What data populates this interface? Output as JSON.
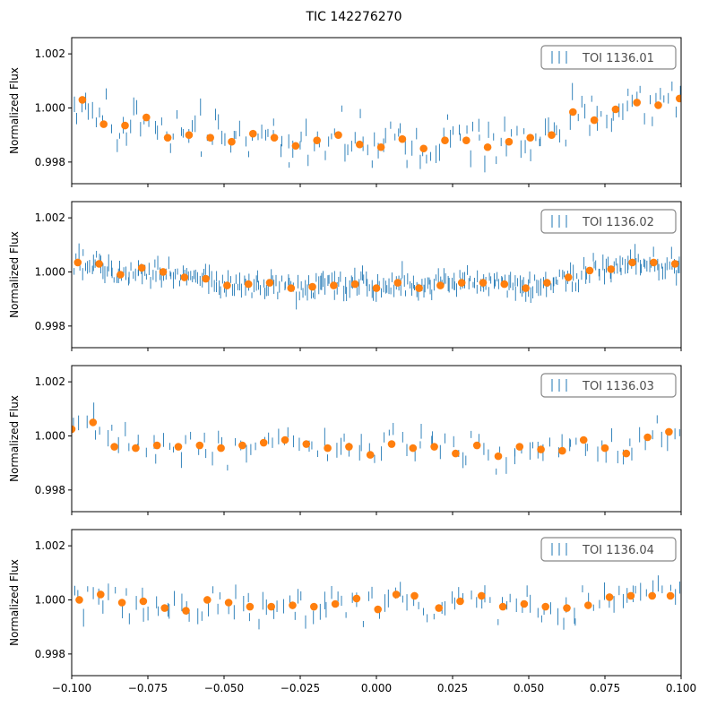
{
  "title": "TIC 142276270",
  "chart_data": [
    {
      "type": "scatter",
      "ylabel": "Normalized Flux",
      "xlim": [
        -0.1,
        0.1
      ],
      "ylim": [
        0.9972,
        1.0026
      ],
      "yticks": [
        0.998,
        1.0,
        1.002
      ],
      "ytick_labels": [
        "0.998",
        "1.000",
        "1.002"
      ],
      "show_x_tick_labels": false,
      "legend": {
        "label": "TOI 1136.01",
        "loc": "top-right"
      },
      "raw_color": "#1f77b4",
      "binned_color": "#ff7f0e",
      "raw_noise": 0.0007,
      "raw_count": 160,
      "binned": {
        "x": [
          -0.0965,
          -0.0895,
          -0.0825,
          -0.0755,
          -0.0685,
          -0.0615,
          -0.0545,
          -0.0475,
          -0.0405,
          -0.0335,
          -0.0265,
          -0.0195,
          -0.0125,
          -0.0055,
          0.0015,
          0.0085,
          0.0155,
          0.0225,
          0.0295,
          0.0365,
          0.0435,
          0.0505,
          0.0575,
          0.0645,
          0.0715,
          0.0785,
          0.0855,
          0.0925,
          0.0995
        ],
        "y": [
          1.0003,
          0.9994,
          0.99935,
          0.99965,
          0.9989,
          0.999,
          0.9989,
          0.99875,
          0.99905,
          0.9989,
          0.9986,
          0.9988,
          0.999,
          0.99865,
          0.99855,
          0.99885,
          0.9985,
          0.9988,
          0.9988,
          0.99855,
          0.99875,
          0.9989,
          0.999,
          0.99985,
          0.99955,
          0.99995,
          1.0002,
          1.0001,
          1.00035
        ]
      }
    },
    {
      "type": "scatter",
      "ylabel": "Normalized Flux",
      "xlim": [
        -0.1,
        0.1
      ],
      "ylim": [
        0.9972,
        1.0026
      ],
      "yticks": [
        0.998,
        1.0,
        1.002
      ],
      "ytick_labels": [
        "0.998",
        "1.000",
        "1.002"
      ],
      "show_x_tick_labels": false,
      "legend": {
        "label": "TOI 1136.02",
        "loc": "top-right"
      },
      "raw_color": "#1f77b4",
      "binned_color": "#ff7f0e",
      "raw_noise": 0.00035,
      "raw_count": 320,
      "binned": {
        "x": [
          -0.098,
          -0.091,
          -0.084,
          -0.077,
          -0.07,
          -0.063,
          -0.056,
          -0.049,
          -0.042,
          -0.035,
          -0.028,
          -0.021,
          -0.014,
          -0.007,
          0.0,
          0.007,
          0.014,
          0.021,
          0.028,
          0.035,
          0.042,
          0.049,
          0.056,
          0.063,
          0.07,
          0.077,
          0.084,
          0.091,
          0.098
        ],
        "y": [
          1.00035,
          1.0003,
          0.9999,
          1.00015,
          1.0,
          0.9998,
          0.99975,
          0.9995,
          0.99955,
          0.9996,
          0.9994,
          0.99945,
          0.9995,
          0.99955,
          0.9994,
          0.9996,
          0.9994,
          0.9995,
          0.9996,
          0.9996,
          0.99955,
          0.9994,
          0.9996,
          0.9998,
          1.00005,
          1.0001,
          1.00035,
          1.00035,
          1.0003
        ]
      }
    },
    {
      "type": "scatter",
      "ylabel": "Normalized Flux",
      "xlim": [
        -0.1,
        0.1
      ],
      "ylim": [
        0.9972,
        1.0026
      ],
      "yticks": [
        0.998,
        1.0,
        1.002
      ],
      "ytick_labels": [
        "0.998",
        "1.000",
        "1.002"
      ],
      "show_x_tick_labels": false,
      "legend": {
        "label": "TOI 1136.03",
        "loc": "top-right"
      },
      "raw_color": "#1f77b4",
      "binned_color": "#ff7f0e",
      "raw_noise": 0.0005,
      "raw_count": 110,
      "binned": {
        "x": [
          -0.1,
          -0.093,
          -0.086,
          -0.079,
          -0.072,
          -0.065,
          -0.058,
          -0.051,
          -0.044,
          -0.037,
          -0.03,
          -0.023,
          -0.016,
          -0.009,
          -0.002,
          0.005,
          0.012,
          0.019,
          0.026,
          0.033,
          0.04,
          0.047,
          0.054,
          0.061,
          0.068,
          0.075,
          0.082,
          0.089,
          0.096
        ],
        "y": [
          1.00025,
          1.0005,
          0.9996,
          0.99955,
          0.99965,
          0.9996,
          0.99965,
          0.99955,
          0.99965,
          0.99975,
          0.99985,
          0.9997,
          0.99955,
          0.9996,
          0.9993,
          0.9997,
          0.99955,
          0.9996,
          0.99935,
          0.99965,
          0.99925,
          0.9996,
          0.9995,
          0.99945,
          0.99985,
          0.99955,
          0.99935,
          0.99995,
          1.00015
        ]
      }
    },
    {
      "type": "scatter",
      "ylabel": "Normalized Flux",
      "xlim": [
        -0.1,
        0.1
      ],
      "ylim": [
        0.9972,
        1.0026
      ],
      "yticks": [
        0.998,
        1.0,
        1.002
      ],
      "ytick_labels": [
        "0.998",
        "1.000",
        "1.002"
      ],
      "xticks": [
        -0.1,
        -0.075,
        -0.05,
        -0.025,
        0.0,
        0.025,
        0.05,
        0.075,
        0.1
      ],
      "xtick_labels": [
        "−0.100",
        "−0.075",
        "−0.050",
        "−0.025",
        "0.000",
        "0.025",
        "0.050",
        "0.075",
        "0.100"
      ],
      "show_x_tick_labels": true,
      "legend": {
        "label": "TOI 1136.04",
        "loc": "top-right"
      },
      "raw_color": "#1f77b4",
      "binned_color": "#ff7f0e",
      "raw_noise": 0.0005,
      "raw_count": 120,
      "binned": {
        "x": [
          -0.0975,
          -0.0905,
          -0.0835,
          -0.0765,
          -0.0695,
          -0.0625,
          -0.0555,
          -0.0485,
          -0.0415,
          -0.0345,
          -0.0275,
          -0.0205,
          -0.0135,
          -0.0065,
          0.0005,
          0.0065,
          0.0125,
          0.0205,
          0.0275,
          0.0345,
          0.0415,
          0.0485,
          0.0555,
          0.0625,
          0.0695,
          0.0765,
          0.0835,
          0.0905,
          0.0965
        ],
        "y": [
          1.0,
          1.0002,
          0.9999,
          0.99995,
          0.9997,
          0.9996,
          1.0,
          0.9999,
          0.99975,
          0.99975,
          0.9998,
          0.99975,
          0.99985,
          1.00005,
          0.99965,
          1.0002,
          1.00015,
          0.9997,
          0.99995,
          1.00015,
          0.99975,
          0.99985,
          0.99975,
          0.9997,
          0.9998,
          1.0001,
          1.00015,
          1.00015,
          1.00015
        ]
      }
    }
  ]
}
